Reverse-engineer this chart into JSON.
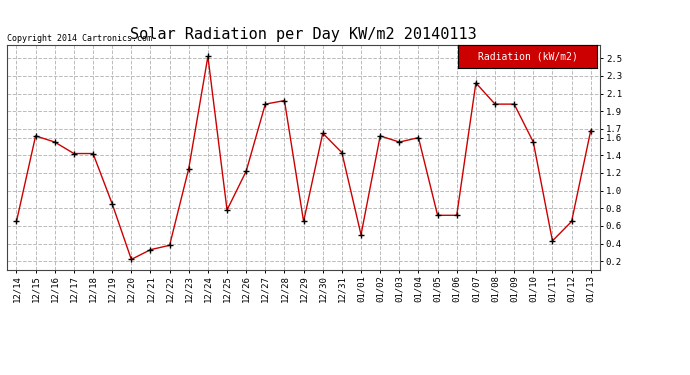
{
  "title": "Solar Radiation per Day KW/m2 20140113",
  "copyright_text": "Copyright 2014 Cartronics.com",
  "legend_label": "Radiation (kW/m2)",
  "dates": [
    "12/14",
    "12/15",
    "12/16",
    "12/17",
    "12/18",
    "12/19",
    "12/20",
    "12/21",
    "12/22",
    "12/23",
    "12/24",
    "12/25",
    "12/26",
    "12/27",
    "12/28",
    "12/29",
    "12/30",
    "12/31",
    "01/01",
    "01/02",
    "01/03",
    "01/04",
    "01/05",
    "01/06",
    "01/07",
    "01/08",
    "01/09",
    "01/10",
    "01/11",
    "01/12",
    "01/13"
  ],
  "values": [
    0.65,
    1.62,
    1.55,
    1.42,
    1.42,
    0.85,
    0.22,
    0.33,
    0.38,
    1.25,
    2.52,
    0.78,
    1.22,
    1.98,
    2.02,
    0.65,
    1.65,
    1.43,
    0.5,
    1.62,
    1.55,
    1.6,
    0.72,
    0.72,
    2.22,
    1.98,
    1.98,
    1.55,
    0.43,
    0.65,
    1.68
  ],
  "line_color": "#cc0000",
  "marker_color": "#000000",
  "bg_color": "#ffffff",
  "plot_bg_color": "#ffffff",
  "grid_color": "#bbbbbb",
  "legend_bg": "#cc0000",
  "legend_text_color": "#ffffff",
  "title_fontsize": 11,
  "tick_fontsize": 6.5,
  "copyright_fontsize": 6,
  "legend_fontsize": 7,
  "ytick_vals": [
    0.2,
    0.4,
    0.6,
    0.8,
    1.0,
    1.2,
    1.4,
    1.6,
    1.7,
    1.9,
    2.1,
    2.3,
    2.5
  ],
  "ylim_min": 0.1,
  "ylim_max": 2.65
}
